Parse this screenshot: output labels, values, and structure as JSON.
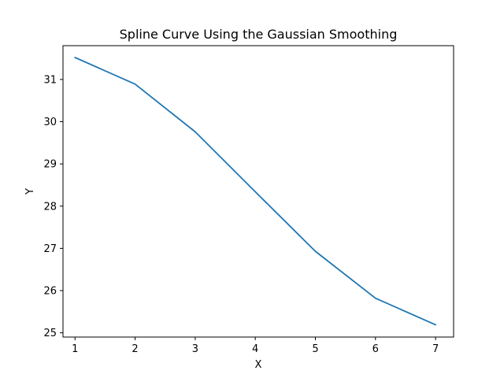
{
  "chart_data": {
    "type": "line",
    "title": "Spline Curve Using the Gaussian Smoothing",
    "xlabel": "X",
    "ylabel": "Y",
    "x": [
      1,
      2,
      3,
      4,
      5,
      6,
      7
    ],
    "series": [
      {
        "values": [
          31.52,
          30.89,
          29.76,
          28.34,
          26.93,
          25.82,
          25.19
        ]
      }
    ],
    "xlim": [
      0.8,
      7.3
    ],
    "ylim": [
      24.9,
      31.8
    ],
    "xticks": [
      1,
      2,
      3,
      4,
      5,
      6,
      7
    ],
    "yticks": [
      25,
      26,
      27,
      28,
      29,
      30,
      31
    ],
    "grid": false,
    "colors": {
      "line": "#1f77b4",
      "frame": "#000000"
    }
  }
}
